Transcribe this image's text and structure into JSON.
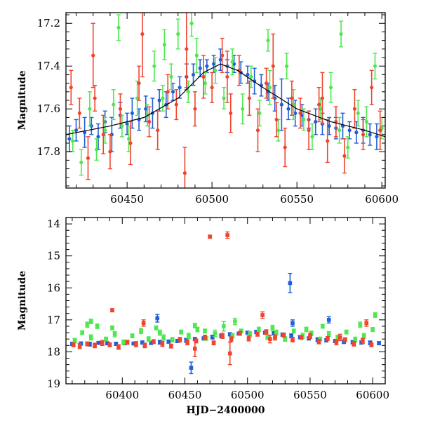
{
  "chart_data": [
    {
      "type": "scatter",
      "title": "",
      "xlabel": "",
      "ylabel": "Magnitude",
      "xlim": [
        60414,
        60602
      ],
      "ylim": [
        17.97,
        17.15
      ],
      "y_inverted": true,
      "grid": false,
      "xticks": [
        60450,
        60500,
        60550,
        60600
      ],
      "yticks": [
        17.2,
        17.4,
        17.6,
        17.8
      ],
      "colors": {
        "blue": "#1f5fd8",
        "green": "#4ee84e",
        "red": "#f0442f",
        "model": "#000000"
      },
      "model_curve": {
        "x": [
          60414,
          60440,
          60460,
          60480,
          60495,
          60505,
          60515,
          60530,
          60550,
          60570,
          60590,
          60602
        ],
        "y": [
          17.72,
          17.68,
          17.64,
          17.55,
          17.43,
          17.39,
          17.42,
          17.5,
          17.6,
          17.66,
          17.7,
          17.73
        ]
      },
      "series": [
        {
          "x": [
            60416,
            60420,
            60425,
            60429,
            60433,
            60437,
            60441,
            60446,
            60450,
            60453,
            60457,
            60461,
            60465,
            60469,
            60473,
            60477,
            60481,
            60485,
            60489,
            60493,
            60497,
            60501,
            60505,
            60509,
            60513,
            60517,
            60521,
            60525,
            60529,
            60533,
            60537,
            60541,
            60545,
            60549,
            60553,
            60557,
            60561,
            60565,
            60569,
            60573,
            60577,
            60581,
            60585,
            60589,
            60593,
            60597
          ],
          "y": [
            17.74,
            17.7,
            17.71,
            17.68,
            17.73,
            17.66,
            17.72,
            17.63,
            17.67,
            17.62,
            17.65,
            17.6,
            17.62,
            17.56,
            17.58,
            17.52,
            17.5,
            17.45,
            17.44,
            17.41,
            17.4,
            17.39,
            17.37,
            17.4,
            17.39,
            17.43,
            17.44,
            17.47,
            17.49,
            17.52,
            17.55,
            17.58,
            17.6,
            17.62,
            17.63,
            17.65,
            17.66,
            17.67,
            17.68,
            17.69,
            17.68,
            17.7,
            17.71,
            17.7,
            17.72,
            17.73
          ],
          "err": [
            0.06,
            0.05,
            0.07,
            0.04,
            0.06,
            0.05,
            0.08,
            0.06,
            0.05,
            0.07,
            0.05,
            0.06,
            0.07,
            0.05,
            0.06,
            0.04,
            0.05,
            0.06,
            0.05,
            0.04,
            0.03,
            0.04,
            0.05,
            0.03,
            0.04,
            0.05,
            0.04,
            0.06,
            0.05,
            0.04,
            0.06,
            0.12,
            0.05,
            0.06,
            0.05,
            0.04,
            0.06,
            0.05,
            0.04,
            0.05,
            0.06,
            0.04,
            0.05,
            0.06,
            0.05,
            0.06
          ]
        },
        {
          "x": [
            60418,
            60423,
            60428,
            60432,
            60437,
            60442,
            60447,
            60451,
            60456,
            60462,
            60466,
            60471,
            60476,
            60480,
            60486,
            60491,
            60496,
            60502,
            60507,
            60512,
            60518,
            60523,
            60528,
            60534,
            60539,
            60544,
            60548,
            60554,
            60559,
            60564,
            60570,
            60575,
            60580,
            60586,
            60591,
            60596,
            60600,
            60445,
            60472,
            60488,
            60533,
            60576
          ],
          "y": [
            17.75,
            17.85,
            17.6,
            17.79,
            17.7,
            17.58,
            17.68,
            17.74,
            17.55,
            17.63,
            17.4,
            17.55,
            17.45,
            17.25,
            17.52,
            17.35,
            17.48,
            17.42,
            17.55,
            17.38,
            17.6,
            17.45,
            17.62,
            17.5,
            17.7,
            17.4,
            17.58,
            17.65,
            17.73,
            17.6,
            17.5,
            17.7,
            17.78,
            17.62,
            17.66,
            17.4,
            17.69,
            17.22,
            17.3,
            17.2,
            17.28,
            17.25
          ],
          "err": [
            0.05,
            0.06,
            0.08,
            0.05,
            0.06,
            0.07,
            0.05,
            0.06,
            0.08,
            0.05,
            0.07,
            0.06,
            0.06,
            0.07,
            0.05,
            0.08,
            0.05,
            0.06,
            0.05,
            0.06,
            0.07,
            0.05,
            0.06,
            0.08,
            0.05,
            0.06,
            0.07,
            0.05,
            0.06,
            0.05,
            0.07,
            0.06,
            0.05,
            0.06,
            0.07,
            0.06,
            0.05,
            0.06,
            0.07,
            0.06,
            0.05,
            0.06
          ]
        },
        {
          "x": [
            60417,
            60422,
            60427,
            60431,
            60436,
            60440,
            60446,
            60452,
            60457,
            60463,
            60468,
            60474,
            60479,
            60484,
            60490,
            60495,
            60500,
            60506,
            60511,
            60516,
            60522,
            60527,
            60532,
            60538,
            60543,
            60547,
            60552,
            60557,
            60563,
            60568,
            60573,
            60578,
            60584,
            60589,
            60594,
            60599,
            60430,
            60459,
            60485,
            60509,
            60536,
            60565
          ],
          "y": [
            17.5,
            17.62,
            17.83,
            17.55,
            17.72,
            17.8,
            17.6,
            17.76,
            17.48,
            17.66,
            17.7,
            17.52,
            17.58,
            17.9,
            17.6,
            17.45,
            17.5,
            17.35,
            17.62,
            17.42,
            17.55,
            17.7,
            17.48,
            17.65,
            17.78,
            17.55,
            17.62,
            17.7,
            17.58,
            17.75,
            17.66,
            17.82,
            17.6,
            17.72,
            17.5,
            17.7,
            17.35,
            17.25,
            17.32,
            17.45,
            17.4,
            17.55
          ],
          "err": [
            0.08,
            0.07,
            0.1,
            0.06,
            0.09,
            0.08,
            0.07,
            0.1,
            0.08,
            0.07,
            0.09,
            0.08,
            0.07,
            0.12,
            0.08,
            0.1,
            0.07,
            0.08,
            0.09,
            0.07,
            0.08,
            0.1,
            0.07,
            0.08,
            0.09,
            0.08,
            0.07,
            0.09,
            0.08,
            0.1,
            0.07,
            0.08,
            0.09,
            0.07,
            0.08,
            0.09,
            0.15,
            0.2,
            0.18,
            0.12,
            0.15,
            0.12
          ]
        }
      ]
    },
    {
      "type": "scatter",
      "title": "",
      "xlabel": "HJD−2400000",
      "ylabel": "Magnitude",
      "xlim": [
        60355,
        60610
      ],
      "ylim": [
        19,
        13.8
      ],
      "y_inverted": true,
      "grid": false,
      "xticks": [
        60400,
        60450,
        60500,
        60550,
        60600
      ],
      "yticks": [
        14,
        15,
        16,
        17,
        18,
        19
      ],
      "colors": {
        "blue": "#1f5fd8",
        "green": "#4ee84e",
        "red": "#f0442f"
      },
      "series": [
        {
          "x": [
            60360,
            60367,
            60374,
            60381,
            60388,
            60395,
            60402,
            60409,
            60416,
            60423,
            60430,
            60437,
            60444,
            60451,
            60458,
            60465,
            60472,
            60479,
            60486,
            60493,
            60500,
            60507,
            60514,
            60521,
            60528,
            60535,
            60542,
            60549,
            60556,
            60563,
            60570,
            60577,
            60584,
            60591,
            60598,
            60605,
            60428,
            60455,
            60534,
            60536,
            60565
          ],
          "y": [
            17.75,
            17.74,
            17.76,
            17.72,
            17.73,
            17.75,
            17.72,
            17.74,
            17.71,
            17.72,
            17.7,
            17.68,
            17.66,
            17.64,
            17.6,
            17.58,
            17.54,
            17.5,
            17.45,
            17.43,
            17.4,
            17.38,
            17.4,
            17.42,
            17.46,
            17.5,
            17.54,
            17.58,
            17.62,
            17.64,
            17.66,
            17.68,
            17.7,
            17.71,
            17.72,
            17.73,
            16.95,
            18.5,
            15.85,
            17.1,
            17.0
          ],
          "err": [
            0.05,
            0.05,
            0.06,
            0.04,
            0.05,
            0.05,
            0.06,
            0.04,
            0.05,
            0.05,
            0.06,
            0.05,
            0.05,
            0.06,
            0.05,
            0.05,
            0.06,
            0.05,
            0.05,
            0.04,
            0.04,
            0.05,
            0.04,
            0.05,
            0.05,
            0.06,
            0.05,
            0.05,
            0.06,
            0.05,
            0.05,
            0.06,
            0.05,
            0.05,
            0.06,
            0.05,
            0.12,
            0.18,
            0.3,
            0.1,
            0.1
          ]
        },
        {
          "x": [
            60362,
            60368,
            60375,
            60380,
            60387,
            60394,
            60401,
            60408,
            60415,
            60421,
            60427,
            60433,
            60440,
            60447,
            60453,
            60460,
            60467,
            60474,
            60481,
            60488,
            60495,
            60502,
            60509,
            60516,
            60523,
            60530,
            60537,
            60544,
            60551,
            60558,
            60565,
            60572,
            60579,
            60586,
            60593,
            60600,
            60372,
            60375,
            60392,
            60430,
            60458,
            60466,
            60490,
            60520,
            60547,
            60560,
            60590,
            60602
          ],
          "y": [
            17.65,
            17.4,
            17.55,
            17.2,
            17.6,
            17.45,
            17.7,
            17.5,
            17.35,
            17.6,
            17.25,
            17.55,
            17.62,
            17.38,
            17.5,
            17.3,
            17.58,
            17.42,
            17.2,
            17.5,
            17.35,
            17.45,
            17.3,
            17.55,
            17.4,
            17.6,
            17.35,
            17.5,
            17.42,
            17.6,
            17.45,
            17.55,
            17.38,
            17.62,
            17.5,
            17.3,
            17.15,
            17.05,
            17.25,
            17.4,
            17.18,
            17.35,
            17.05,
            17.25,
            17.3,
            17.2,
            17.15,
            16.85
          ],
          "err": [
            0.07,
            0.06,
            0.08,
            0.07,
            0.06,
            0.08,
            0.07,
            0.06,
            0.08,
            0.07,
            0.06,
            0.08,
            0.07,
            0.06,
            0.08,
            0.07,
            0.06,
            0.1,
            0.15,
            0.07,
            0.06,
            0.08,
            0.07,
            0.06,
            0.08,
            0.07,
            0.06,
            0.08,
            0.07,
            0.06,
            0.08,
            0.07,
            0.06,
            0.08,
            0.07,
            0.06,
            0.08,
            0.07,
            0.06,
            0.08,
            0.07,
            0.06,
            0.1,
            0.08,
            0.07,
            0.06,
            0.08,
            0.07
          ]
        },
        {
          "x": [
            60361,
            60366,
            60372,
            60378,
            60384,
            60390,
            60397,
            60404,
            60411,
            60418,
            60425,
            60432,
            60439,
            60446,
            60452,
            60459,
            60466,
            60473,
            60480,
            60487,
            60494,
            60501,
            60508,
            60515,
            60522,
            60529,
            60536,
            60543,
            60550,
            60557,
            60564,
            60571,
            60578,
            60585,
            60592,
            60599,
            60392,
            60417,
            60458,
            60470,
            60484,
            60486,
            60512,
            60518,
            60574,
            60595
          ],
          "y": [
            17.78,
            17.82,
            17.75,
            17.8,
            17.72,
            17.78,
            17.85,
            17.7,
            17.76,
            17.8,
            17.68,
            17.75,
            17.82,
            17.62,
            17.7,
            17.66,
            17.55,
            17.72,
            17.5,
            17.6,
            17.42,
            17.58,
            17.45,
            17.38,
            17.55,
            17.48,
            17.62,
            17.55,
            17.5,
            17.68,
            17.58,
            17.7,
            17.62,
            17.75,
            17.66,
            17.78,
            16.7,
            17.1,
            17.9,
            14.4,
            14.35,
            18.05,
            16.85,
            17.6,
            17.55,
            17.1
          ],
          "err": [
            0.06,
            0.08,
            0.06,
            0.07,
            0.08,
            0.06,
            0.07,
            0.06,
            0.08,
            0.07,
            0.06,
            0.08,
            0.06,
            0.07,
            0.08,
            0.06,
            0.07,
            0.06,
            0.08,
            0.07,
            0.06,
            0.08,
            0.06,
            0.07,
            0.08,
            0.06,
            0.07,
            0.06,
            0.08,
            0.07,
            0.06,
            0.08,
            0.06,
            0.07,
            0.08,
            0.06,
            0.05,
            0.1,
            0.25,
            0.05,
            0.1,
            0.35,
            0.1,
            0.12,
            0.1,
            0.1
          ]
        }
      ]
    }
  ]
}
